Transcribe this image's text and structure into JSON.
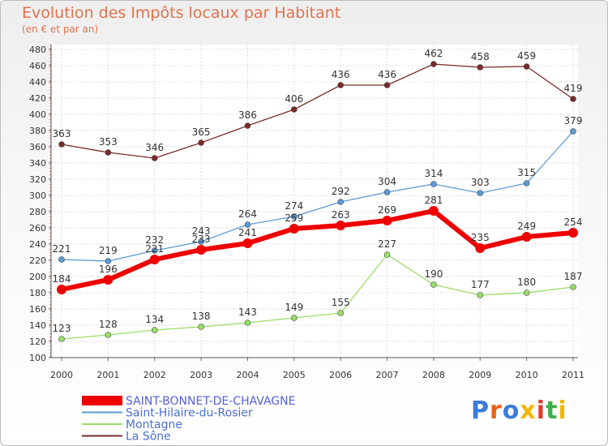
{
  "chart_data": {
    "type": "line",
    "title": "Evolution des Impôts locaux par Habitant",
    "subtitle": "(en € et par an)",
    "xlabel": "",
    "ylabel": "",
    "x": [
      "2000",
      "2001",
      "2002",
      "2003",
      "2004",
      "2005",
      "2006",
      "2007",
      "2008",
      "2009",
      "2010",
      "2011"
    ],
    "ylim": [
      100,
      480
    ],
    "yticks": [
      100,
      120,
      140,
      160,
      180,
      200,
      220,
      240,
      260,
      280,
      300,
      320,
      340,
      360,
      380,
      400,
      420,
      440,
      460,
      480
    ],
    "grid": true,
    "legend_position": "bottom-left",
    "series": [
      {
        "name": "SAINT-BONNET-DE-CHAVAGNE",
        "color": "#ee0000",
        "emphasis": true,
        "values": [
          184,
          196,
          221,
          233,
          241,
          259,
          263,
          269,
          281,
          235,
          249,
          254
        ]
      },
      {
        "name": "Saint-Hilaire-du-Rosier",
        "color": "#5b9bd5",
        "values": [
          221,
          219,
          232,
          243,
          264,
          274,
          292,
          304,
          314,
          303,
          315,
          379
        ]
      },
      {
        "name": "Montagne",
        "color": "#99dd66",
        "values": [
          123,
          128,
          134,
          138,
          143,
          149,
          155,
          227,
          190,
          177,
          180,
          187
        ]
      },
      {
        "name": "La Sône",
        "color": "#7b2a2a",
        "values": [
          363,
          353,
          346,
          365,
          386,
          406,
          436,
          436,
          462,
          458,
          459,
          419
        ]
      }
    ]
  },
  "logo": {
    "letters": [
      {
        "ch": "P",
        "color": "#3b7dd8"
      },
      {
        "ch": "r",
        "color": "#e8621a"
      },
      {
        "ch": "o",
        "color": "#3b7dd8"
      },
      {
        "ch": "x",
        "color": "#f2b705"
      },
      {
        "ch": "i",
        "color": "#e23a2e"
      },
      {
        "ch": "t",
        "color": "#3fae49"
      },
      {
        "ch": "i",
        "color": "#f2b705"
      }
    ]
  }
}
